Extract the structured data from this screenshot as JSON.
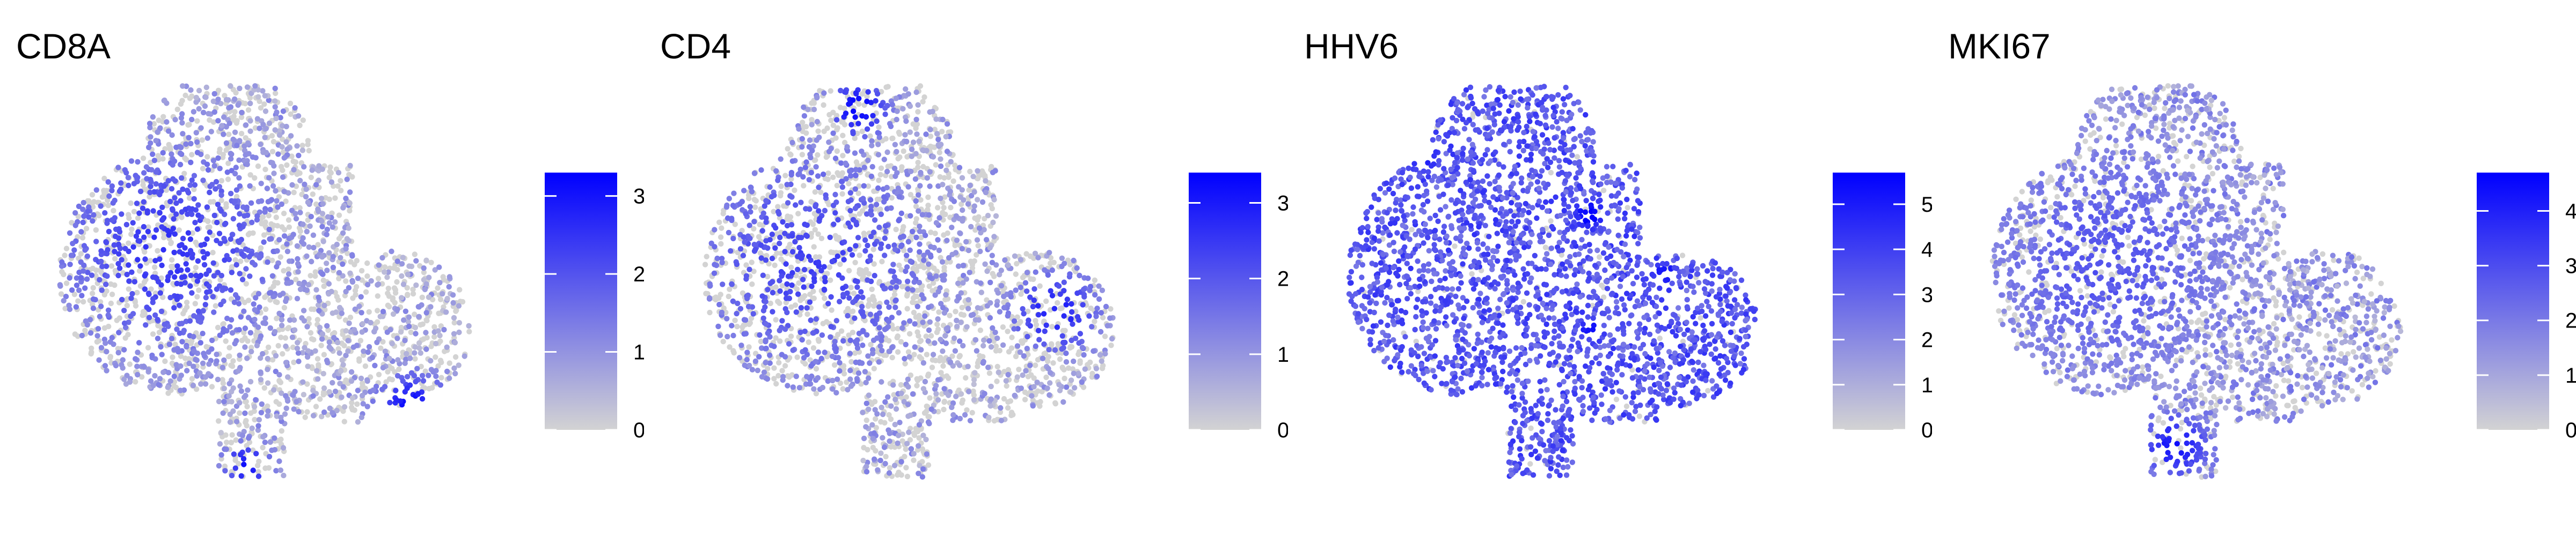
{
  "chart_data": [
    {
      "type": "scatter",
      "title": "CD8A",
      "legend": {
        "min": 0,
        "max": 3.3,
        "ticks": [
          0,
          1,
          2,
          3
        ]
      },
      "grid": false,
      "axes": false,
      "colors": {
        "low": "#d3d3d3",
        "high": "#0000ff"
      },
      "hotspots": [
        {
          "x": 0.28,
          "y": 0.42,
          "level": 0.7,
          "spread": 0.22
        },
        {
          "x": 0.86,
          "y": 0.82,
          "level": 0.9,
          "spread": 0.07
        },
        {
          "x": 0.47,
          "y": 0.97,
          "level": 0.85,
          "spread": 0.05
        }
      ],
      "base_level": 0.05,
      "high_fraction": 0.55
    },
    {
      "type": "scatter",
      "title": "CD4",
      "legend": {
        "min": 0,
        "max": 3.4,
        "ticks": [
          0,
          1,
          2,
          3
        ]
      },
      "grid": false,
      "axes": false,
      "colors": {
        "low": "#d3d3d3",
        "high": "#0000ff"
      },
      "hotspots": [
        {
          "x": 0.39,
          "y": 0.06,
          "level": 0.95,
          "spread": 0.06
        },
        {
          "x": 0.86,
          "y": 0.58,
          "level": 0.8,
          "spread": 0.09
        },
        {
          "x": 0.28,
          "y": 0.45,
          "level": 0.65,
          "spread": 0.24
        }
      ],
      "base_level": 0.05,
      "high_fraction": 0.5
    },
    {
      "type": "scatter",
      "title": "HHV6",
      "legend": {
        "min": 0,
        "max": 5.7,
        "ticks": [
          0,
          1,
          2,
          3,
          4,
          5
        ]
      },
      "grid": false,
      "axes": false,
      "colors": {
        "low": "#d3d3d3",
        "high": "#0000ff"
      },
      "hotspots": [
        {
          "x": 0.6,
          "y": 0.33,
          "level": 1.0,
          "spread": 0.04
        },
        {
          "x": 0.78,
          "y": 0.48,
          "level": 0.95,
          "spread": 0.03
        },
        {
          "x": 0.6,
          "y": 0.62,
          "level": 0.9,
          "spread": 0.03
        },
        {
          "x": 0.2,
          "y": 0.18,
          "level": 0.85,
          "spread": 0.05
        }
      ],
      "base_level": 0.42,
      "high_fraction": 0.95
    },
    {
      "type": "scatter",
      "title": "MKI67",
      "legend": {
        "min": 0,
        "max": 4.7,
        "ticks": [
          0,
          1,
          2,
          3,
          4
        ]
      },
      "grid": false,
      "axes": false,
      "colors": {
        "low": "#d3d3d3",
        "high": "#0000ff"
      },
      "hotspots": [
        {
          "x": 0.14,
          "y": 0.15,
          "level": 0.95,
          "spread": 0.05
        },
        {
          "x": 0.46,
          "y": 0.92,
          "level": 0.85,
          "spread": 0.07
        },
        {
          "x": 0.3,
          "y": 0.45,
          "level": 0.55,
          "spread": 0.26
        }
      ],
      "base_level": 0.12,
      "high_fraction": 0.75
    }
  ]
}
